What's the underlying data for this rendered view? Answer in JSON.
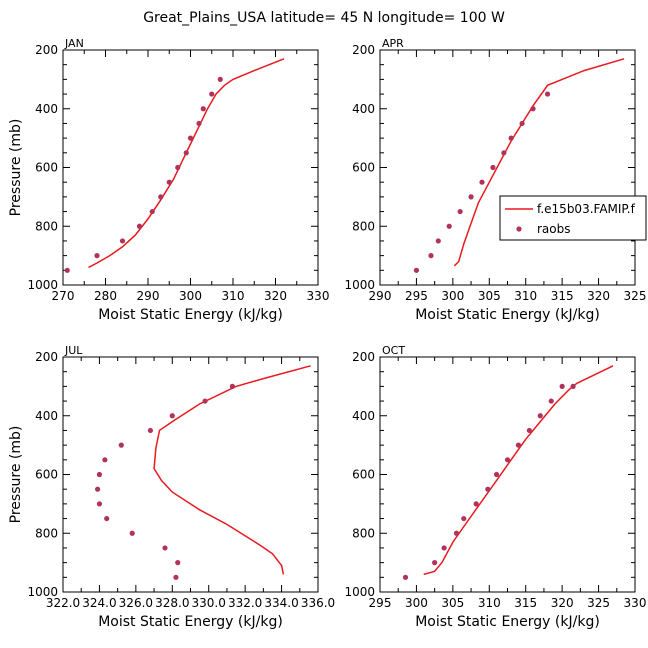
{
  "title": "Great_Plains_USA   latitude= 45 N longitude= 100 W",
  "colors": {
    "model": "#e8191f",
    "obs": "#b2335a"
  },
  "legend": {
    "model_label": "f.e15b03.FAMIP.f",
    "obs_label": "raobs",
    "panel": 1
  },
  "chart_data": [
    {
      "type": "line",
      "panel_label": "JAN",
      "xlabel": "Moist Static Energy (kJ/kg)",
      "ylabel": "Pressure (mb)",
      "xlim": [
        270,
        330
      ],
      "ylim": [
        1000,
        200
      ],
      "xticks": [
        "270",
        "280",
        "290",
        "300",
        "310",
        "320",
        "330"
      ],
      "xtick_values": [
        270,
        280,
        290,
        300,
        310,
        320,
        330
      ],
      "yticks": [
        "200",
        "400",
        "600",
        "800",
        "1000"
      ],
      "ytick_values": [
        200,
        400,
        600,
        800,
        1000
      ],
      "series": [
        {
          "kind": "line",
          "x": [
            276,
            278,
            281,
            284,
            287,
            290,
            293,
            296,
            298,
            300,
            302,
            304,
            306,
            308,
            310,
            315,
            322
          ],
          "y": [
            940,
            925,
            900,
            870,
            830,
            775,
            710,
            640,
            580,
            520,
            460,
            400,
            350,
            320,
            300,
            270,
            230
          ]
        },
        {
          "kind": "points",
          "x": [
            271,
            278,
            284,
            288,
            291,
            293,
            295,
            297,
            299,
            300,
            302,
            303,
            305,
            307
          ],
          "y": [
            950,
            900,
            850,
            800,
            750,
            700,
            650,
            600,
            550,
            500,
            450,
            400,
            350,
            300
          ]
        }
      ]
    },
    {
      "type": "line",
      "panel_label": "APR",
      "xlabel": "Moist Static Energy (kJ/kg)",
      "ylabel": "",
      "xlim": [
        290,
        325
      ],
      "ylim": [
        1000,
        200
      ],
      "xticks": [
        "290",
        "295",
        "300",
        "305",
        "310",
        "315",
        "320",
        "325"
      ],
      "xtick_values": [
        290,
        295,
        300,
        305,
        310,
        315,
        320,
        325
      ],
      "yticks": [
        "200",
        "400",
        "600",
        "800",
        "1000"
      ],
      "ytick_values": [
        200,
        400,
        600,
        800,
        1000
      ],
      "series": [
        {
          "kind": "line",
          "x": [
            300.2,
            300.8,
            301.5,
            302.5,
            303.5,
            305,
            306.5,
            308,
            309.5,
            311,
            313,
            315,
            318,
            323.5
          ],
          "y": [
            935,
            920,
            860,
            790,
            720,
            650,
            580,
            510,
            450,
            390,
            320,
            300,
            270,
            230
          ]
        },
        {
          "kind": "points",
          "x": [
            295,
            297,
            298,
            299.5,
            301,
            302.5,
            304,
            305.5,
            307,
            308,
            309.5,
            311,
            313
          ],
          "y": [
            950,
            900,
            850,
            800,
            750,
            700,
            650,
            600,
            550,
            500,
            450,
            400,
            350
          ]
        }
      ]
    },
    {
      "type": "line",
      "panel_label": "JUL",
      "xlabel": "Moist Static Energy (kJ/kg)",
      "ylabel": "Pressure (mb)",
      "xlim": [
        322.0,
        336.0
      ],
      "ylim": [
        1000,
        200
      ],
      "xticks": [
        "322.0",
        "324.0",
        "326.0",
        "328.0",
        "330.0",
        "332.0",
        "334.0",
        "336.0"
      ],
      "xtick_values": [
        322,
        324,
        326,
        328,
        330,
        332,
        334,
        336
      ],
      "yticks": [
        "200",
        "400",
        "600",
        "800",
        "1000"
      ],
      "ytick_values": [
        200,
        400,
        600,
        800,
        1000
      ],
      "series": [
        {
          "kind": "line",
          "x": [
            334.1,
            334.0,
            333.5,
            332.8,
            331.0,
            329.5,
            328.0,
            327.4,
            327.0,
            327.1,
            327.3,
            328.0,
            329.5,
            331.5,
            333.2,
            335.6
          ],
          "y": [
            940,
            910,
            870,
            840,
            770,
            720,
            660,
            620,
            580,
            510,
            450,
            420,
            360,
            300,
            270,
            230
          ]
        },
        {
          "kind": "points",
          "x": [
            328.2,
            328.3,
            327.6,
            325.8,
            324.4,
            324.0,
            323.9,
            324.0,
            324.3,
            325.2,
            326.8,
            328.0,
            329.8,
            331.3
          ],
          "y": [
            950,
            900,
            850,
            800,
            750,
            700,
            650,
            600,
            550,
            500,
            450,
            400,
            350,
            300
          ]
        }
      ]
    },
    {
      "type": "line",
      "panel_label": "OCT",
      "xlabel": "Moist Static Energy (kJ/kg)",
      "ylabel": "",
      "xlim": [
        295,
        330
      ],
      "ylim": [
        1000,
        200
      ],
      "xticks": [
        "295",
        "300",
        "305",
        "310",
        "315",
        "320",
        "325",
        "330"
      ],
      "xtick_values": [
        295,
        300,
        305,
        310,
        315,
        320,
        325,
        330
      ],
      "yticks": [
        "200",
        "400",
        "600",
        "800",
        "1000"
      ],
      "ytick_values": [
        200,
        400,
        600,
        800,
        1000
      ],
      "series": [
        {
          "kind": "line",
          "x": [
            301,
            302.5,
            303.5,
            305,
            307,
            309,
            311,
            313,
            315,
            317,
            319,
            321,
            322,
            327
          ],
          "y": [
            940,
            930,
            900,
            830,
            760,
            690,
            620,
            550,
            480,
            420,
            360,
            310,
            290,
            230
          ]
        },
        {
          "kind": "points",
          "x": [
            298.5,
            302.5,
            303.8,
            305.5,
            306.5,
            308.2,
            309.8,
            311,
            312.5,
            314,
            315.5,
            317,
            318.5,
            320,
            321.5
          ],
          "y": [
            950,
            900,
            850,
            800,
            750,
            700,
            650,
            600,
            550,
            500,
            450,
            400,
            350,
            300,
            300
          ]
        }
      ]
    }
  ]
}
